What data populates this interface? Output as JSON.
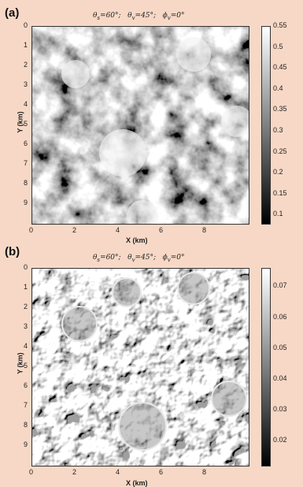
{
  "chart_data": [
    {
      "panel_label": "(a)",
      "type": "heatmap",
      "title": {
        "theta_s": "60°",
        "theta_v": "45°",
        "phi_v": "0°"
      },
      "xlabel": "X (km)",
      "ylabel": "Y (km)",
      "xlim": [
        0,
        10
      ],
      "ylim": [
        0,
        10
      ],
      "x_ticks": [
        "0",
        "2",
        "4",
        "6",
        "8"
      ],
      "y_ticks": [
        "0",
        "1",
        "2",
        "3",
        "4",
        "5",
        "6",
        "7",
        "8",
        "9"
      ],
      "colorbar": {
        "min": 0.08,
        "max": 0.55,
        "ticks": [
          "0.55",
          "0.5",
          "0.45",
          "0.4",
          "0.35",
          "0.3",
          "0.25",
          "0.2",
          "0.15",
          "0.1"
        ],
        "tick_values": [
          0.55,
          0.5,
          0.45,
          0.4,
          0.35,
          0.3,
          0.25,
          0.2,
          0.15,
          0.1
        ]
      },
      "colormap": "gray"
    },
    {
      "panel_label": "(b)",
      "type": "heatmap",
      "title": {
        "theta_s": "60°",
        "theta_v": "45°",
        "phi_v": "0°"
      },
      "xlabel": "X (km)",
      "ylabel": "Y (km)",
      "xlim": [
        0,
        10
      ],
      "ylim": [
        0,
        10
      ],
      "x_ticks": [
        "0",
        "2",
        "4",
        "6",
        "8"
      ],
      "y_ticks": [
        "0",
        "1",
        "2",
        "3",
        "4",
        "5",
        "6",
        "7",
        "8",
        "9"
      ],
      "colorbar": {
        "min": 0.012,
        "max": 0.076,
        "ticks": [
          "0.07",
          "0.06",
          "0.05",
          "0.04",
          "0.03",
          "0.02"
        ],
        "tick_values": [
          0.07,
          0.06,
          0.05,
          0.04,
          0.03,
          0.02
        ]
      },
      "colormap": "gray"
    }
  ]
}
